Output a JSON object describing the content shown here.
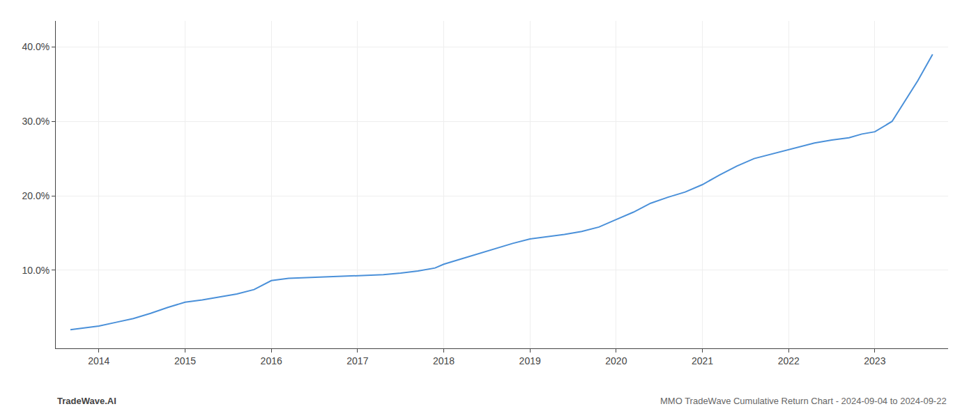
{
  "chart_data": {
    "type": "line",
    "x": [
      2013.67,
      2014.0,
      2014.2,
      2014.4,
      2014.6,
      2014.8,
      2015.0,
      2015.2,
      2015.4,
      2015.6,
      2015.8,
      2016.0,
      2016.2,
      2016.4,
      2016.6,
      2016.8,
      2017.0,
      2017.1,
      2017.3,
      2017.5,
      2017.7,
      2017.9,
      2018.0,
      2018.2,
      2018.4,
      2018.6,
      2018.8,
      2019.0,
      2019.2,
      2019.4,
      2019.6,
      2019.8,
      2020.0,
      2020.2,
      2020.4,
      2020.6,
      2020.8,
      2021.0,
      2021.2,
      2021.4,
      2021.6,
      2021.8,
      2022.0,
      2022.15,
      2022.3,
      2022.5,
      2022.7,
      2022.85,
      2023.0,
      2023.2,
      2023.5,
      2023.67
    ],
    "values": [
      0.02,
      0.025,
      0.03,
      0.035,
      0.042,
      0.05,
      0.057,
      0.06,
      0.064,
      0.068,
      0.074,
      0.086,
      0.089,
      0.09,
      0.091,
      0.092,
      0.093,
      0.093,
      0.094,
      0.096,
      0.099,
      0.103,
      0.108,
      0.115,
      0.122,
      0.129,
      0.136,
      0.142,
      0.145,
      0.148,
      0.152,
      0.158,
      0.168,
      0.178,
      0.19,
      0.198,
      0.205,
      0.215,
      0.228,
      0.24,
      0.25,
      0.256,
      0.262,
      0.267,
      0.271,
      0.275,
      0.278,
      0.283,
      0.286,
      0.3,
      0.355,
      0.39
    ],
    "color": "#4a90d9",
    "xlim": [
      2013.5,
      2023.85
    ],
    "ylim": [
      -0.005,
      0.435
    ],
    "xticks": [
      2014,
      2015,
      2016,
      2017,
      2018,
      2019,
      2020,
      2021,
      2022,
      2023
    ],
    "yticks": [
      {
        "value": 0.1,
        "label": "10.0%"
      },
      {
        "value": 0.2,
        "label": "20.0%"
      },
      {
        "value": 0.3,
        "label": "30.0%"
      },
      {
        "value": 0.4,
        "label": "40.0%"
      }
    ],
    "grid": true,
    "annotations": [
      "TradeWave.AI",
      "MMO TradeWave Cumulative Return Chart - 2024-09-04 to 2024-09-22"
    ]
  }
}
